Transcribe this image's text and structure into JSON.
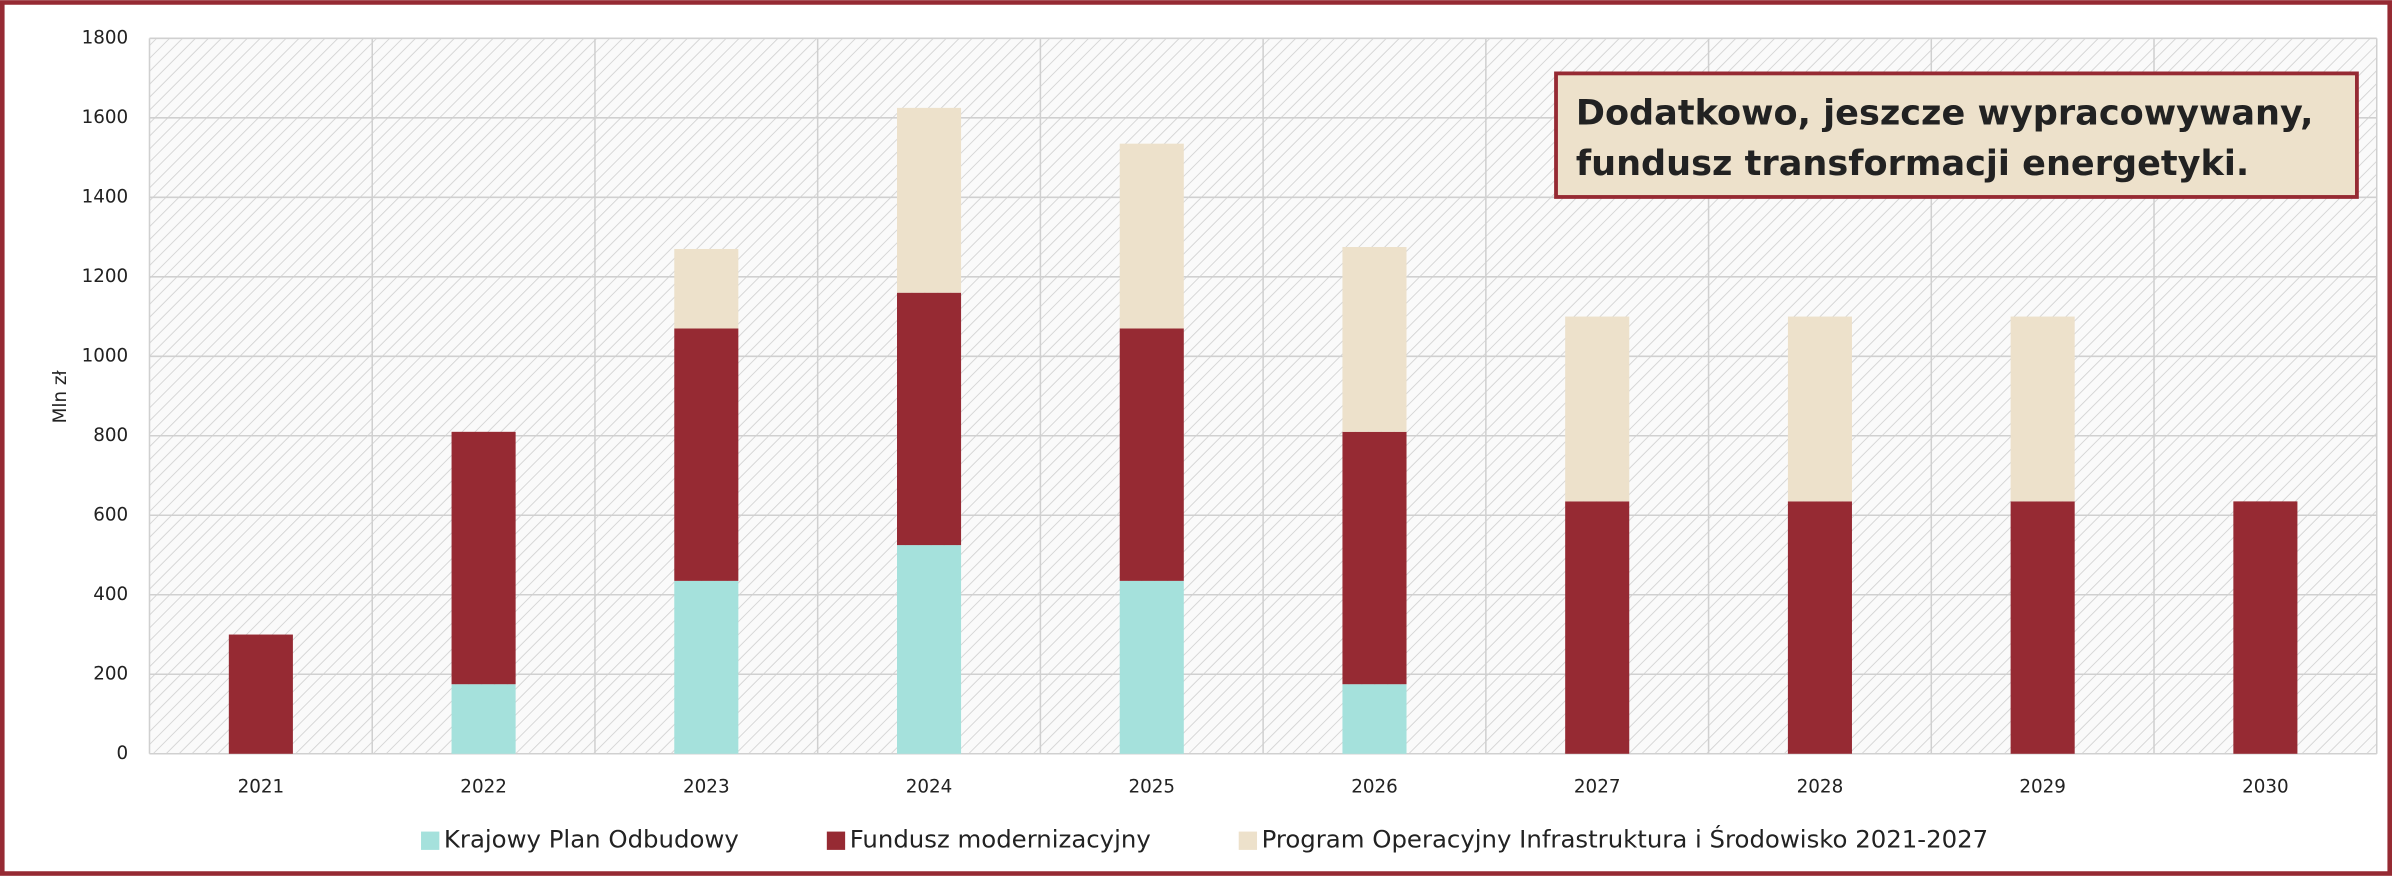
{
  "chart_data": {
    "type": "stacked_bar",
    "y_label": "Mln zł",
    "categories": [
      "2021",
      "2022",
      "2023",
      "2024",
      "2025",
      "2026",
      "2027",
      "2028",
      "2029",
      "2030"
    ],
    "series": [
      {
        "name": "Krajowy Plan Odbudowy",
        "color": "#a5e1dc",
        "values": [
          0,
          175,
          435,
          525,
          435,
          175,
          0,
          0,
          0,
          0
        ]
      },
      {
        "name": "Fundusz modernizacyjny",
        "color": "#962a33",
        "values": [
          300,
          635,
          635,
          635,
          635,
          635,
          635,
          635,
          635,
          635
        ]
      },
      {
        "name": "Program Operacyjny Infrastruktura i Środowisko 2021-2027",
        "color": "#ede1cb",
        "values": [
          0,
          0,
          200,
          465,
          465,
          465,
          465,
          465,
          465,
          0
        ]
      }
    ],
    "ylim": [
      0,
      1800
    ],
    "yticks": [
      0,
      200,
      400,
      600,
      800,
      1000,
      1200,
      1400,
      1600,
      1800
    ],
    "grid": true,
    "annotation": [
      "Dodatkowo, jeszcze wypracowywany,",
      "fundusz transformacji energetyki."
    ]
  }
}
